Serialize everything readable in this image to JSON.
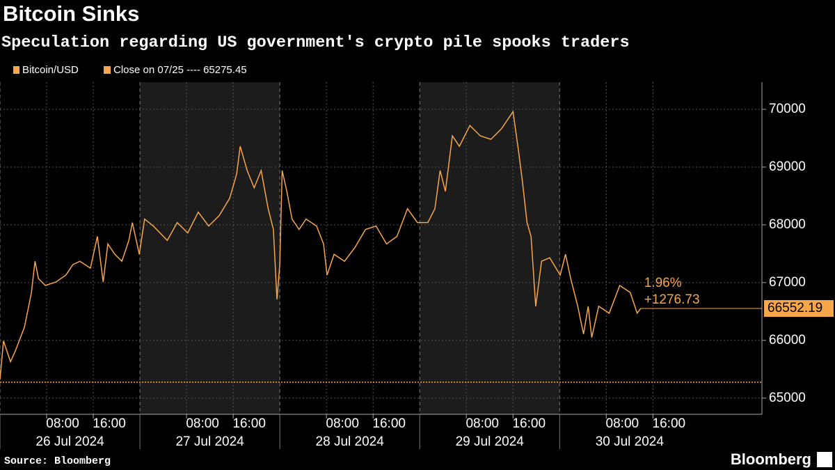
{
  "chart_data": {
    "type": "line",
    "title": "Bitcoin Sinks",
    "subtitle": "Speculation regarding US government's crypto pile spooks traders",
    "source": "Source: Bloomberg",
    "brand": "Bloomberg",
    "x": [
      0,
      0.6,
      1.8,
      2.6,
      4.2,
      5.4,
      6.0,
      6.6,
      7.8,
      9.6,
      11.3,
      12.5,
      13.7,
      15.5,
      16.7,
      17.7,
      18.5,
      19.7,
      20.9,
      22.1,
      22.7,
      23.9,
      24.8,
      26.3,
      28.7,
      30.4,
      32.2,
      34.0,
      35.8,
      37.6,
      39.4,
      40.6,
      41.2,
      42.4,
      43.6,
      44.8,
      46.0,
      46.9,
      47.5,
      48.0,
      48.4,
      49.2,
      50.1,
      51.3,
      52.5,
      54.3,
      55.5,
      56.1,
      57.3,
      59.1,
      60.9,
      62.7,
      64.5,
      66.3,
      68.1,
      69.9,
      71.6,
      73.4,
      74.6,
      75.5,
      76.4,
      77.6,
      78.8,
      80.6,
      82.4,
      84.2,
      86.0,
      88.0,
      89.0,
      89.6,
      90.4,
      91.1,
      91.9,
      92.9,
      94.3,
      96.1,
      97.0,
      97.9,
      99.1,
      100.1,
      100.9,
      101.5,
      102.7,
      104.5,
      106.3,
      108.1,
      109.3,
      109.9
    ],
    "series": [
      {
        "name": "Bitcoin/USD",
        "color": "#f7a64a",
        "values": [
          65325,
          65990,
          65630,
          65810,
          66230,
          66830,
          67370,
          67070,
          66950,
          67010,
          67130,
          67310,
          67370,
          67250,
          67800,
          67010,
          67670,
          67490,
          67370,
          67730,
          68040,
          67490,
          68100,
          67980,
          67730,
          68040,
          67860,
          68220,
          67980,
          68160,
          68460,
          68880,
          69360,
          68940,
          68640,
          68940,
          68280,
          67920,
          66710,
          67310,
          68940,
          68580,
          68100,
          67920,
          68100,
          67980,
          67670,
          67130,
          67490,
          67370,
          67610,
          67920,
          67980,
          67670,
          67800,
          68280,
          68040,
          68040,
          68280,
          68940,
          68580,
          69540,
          69360,
          69720,
          69540,
          69480,
          69660,
          69960,
          69240,
          68760,
          68040,
          67800,
          66590,
          67370,
          67430,
          67130,
          67490,
          67070,
          66590,
          66110,
          66590,
          66050,
          66590,
          66470,
          66950,
          66830,
          66470,
          66552.19
        ]
      }
    ],
    "close": {
      "label": "Close on 07/25 ----",
      "value": 65275.45,
      "color": "#f7a64a"
    },
    "annotations": [
      "1.96%",
      "+1276.73"
    ],
    "xlim": [
      0,
      130.7
    ],
    "xticks": [
      {
        "value": 8,
        "label": "08:00"
      },
      {
        "value": 16,
        "label": "16:00"
      },
      {
        "value": 32,
        "label": "08:00"
      },
      {
        "value": 40,
        "label": "16:00"
      },
      {
        "value": 56,
        "label": "08:00"
      },
      {
        "value": 64,
        "label": "16:00"
      },
      {
        "value": 80,
        "label": "08:00"
      },
      {
        "value": 88,
        "label": "16:00"
      },
      {
        "value": 104,
        "label": "08:00"
      },
      {
        "value": 112,
        "label": "16:00"
      }
    ],
    "days": [
      {
        "value": 0,
        "label": "26 Jul 2024"
      },
      {
        "value": 24,
        "label": "27 Jul 2024"
      },
      {
        "value": 48,
        "label": "28 Jul 2024"
      },
      {
        "value": 72,
        "label": "29 Jul 2024"
      },
      {
        "value": 96,
        "label": "30 Jul 2024"
      }
    ],
    "ylim": [
      64720,
      70470
    ],
    "yticks": [
      65000,
      66000,
      67000,
      68000,
      69000,
      70000
    ],
    "grid": true
  }
}
